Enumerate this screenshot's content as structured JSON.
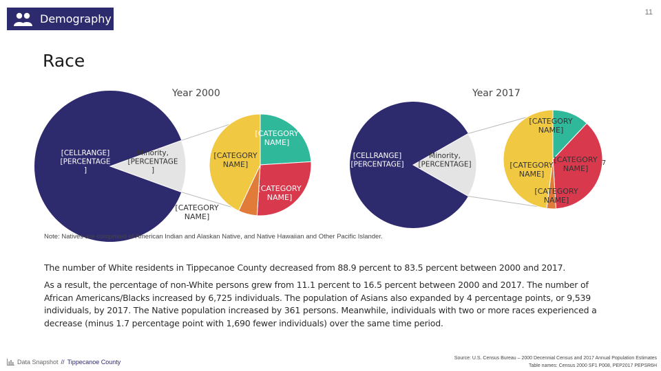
{
  "page": {
    "number": "11",
    "section_label": "Demography",
    "section_icon": "people-icon",
    "heading": "Race",
    "note": "Note: Natives are comprised of American Indian and Alaskan Native, and Native Hawaiian and Other Pacific Islander.",
    "paragraph_1": "The number of White residents in Tippecanoe County decreased from 88.9 percent to 83.5 percent between 2000 and 2017.",
    "paragraph_2": "As a result, the percentage of non-White persons grew from 11.1 percent to 16.5 percent between 2000 and 2017. The number of African Americans/Blacks increased by 6,725 individuals. The population of Asians also expanded by 4 percentage points, or 9,539 individuals, by 2017. The Native population increased by 361 persons. Meanwhile, individuals with two or more races experienced a decrease (minus 1.7 percentage point with 1,690 fewer individuals) over the same time period.",
    "footer_brand": "Data Snapshot",
    "footer_separator": "//",
    "footer_county": "Tippecanoe County",
    "footer_icon": "bar-chart-icon",
    "source_line_1": "Source: U.S. Census Bureau – 2000 Decennial Census and 2017 Annual Population Estimates",
    "source_line_2": "Table names: Census 2000 SF1 P008, PEP2017 PEPSR6H"
  },
  "colors": {
    "navy": "#2e2a6e",
    "light_gray": "#e4e4e4",
    "yellow": "#f1c842",
    "teal": "#2fb89a",
    "red": "#d8394d",
    "orange": "#e07b3a"
  },
  "chart_data": [
    {
      "type": "pie",
      "title": "Year 2000",
      "slices": [
        {
          "label": "[CELLRANGE]\n[PERCENTAGE\n]",
          "value": 88.9,
          "color": "#2e2a6e"
        },
        {
          "label": "Minority,\n[PERCENTAGE\n]",
          "value": 11.1,
          "color": "#e4e4e4"
        }
      ],
      "breakdown": [
        {
          "label": "[CATEGORY\nNAME]",
          "value": 24,
          "color": "#2fb89a"
        },
        {
          "label": "[CATEGORY\nNAME]",
          "value": 27,
          "color": "#d8394d"
        },
        {
          "label": "[CATEGORY\nNAME]",
          "value": 6,
          "color": "#e07b3a"
        },
        {
          "label": "[CATEGORY\nNAME]",
          "value": 43,
          "color": "#f1c842"
        }
      ]
    },
    {
      "type": "pie",
      "title": "Year 2017",
      "slices": [
        {
          "label": "[CELLRANGE]\n[PERCENTAGE]",
          "value": 83.5,
          "color": "#2e2a6e"
        },
        {
          "label": "Minority,\n[PERCENTAGE]",
          "value": 16.5,
          "color": "#e4e4e4"
        }
      ],
      "breakdown": [
        {
          "label": "[CATEGORY\nNAME]",
          "value": 12,
          "color": "#2fb89a"
        },
        {
          "label": "[CATEGORY\nNAME]",
          "value": 37,
          "color": "#d8394d"
        },
        {
          "label": "[CATEGORY\nNAME]",
          "value": 3,
          "color": "#e07b3a"
        },
        {
          "label": "[CATEGORY\nNAME]",
          "value": 48,
          "color": "#f1c842"
        }
      ],
      "extra_label": "7"
    }
  ]
}
